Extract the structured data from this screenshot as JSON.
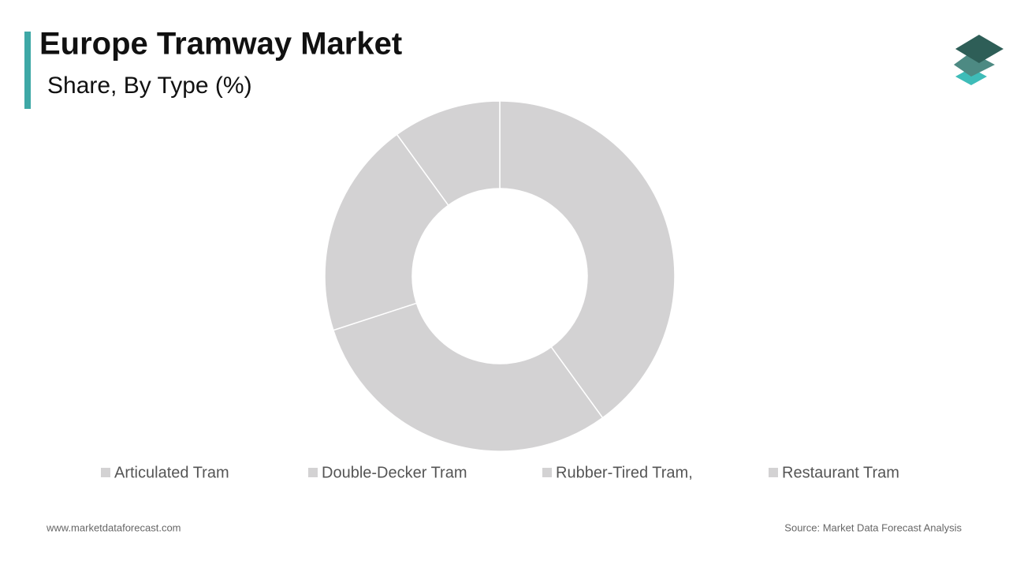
{
  "chart_data": {
    "type": "donut",
    "title": "Europe Tramway Market",
    "subtitle": "Share, By Type (%)",
    "categories": [
      "Articulated Tram",
      "Double-Decker Tram",
      "Rubber-Tired Tram,",
      "Restaurant Tram"
    ],
    "values": [
      40,
      30,
      20,
      10
    ],
    "colors": [
      "#d3d2d3",
      "#d3d2d3",
      "#d3d2d3",
      "#d3d2d3"
    ]
  },
  "footer": {
    "website": "www.marketdataforecast.com",
    "source": "Source: Market Data Forecast Analysis"
  }
}
